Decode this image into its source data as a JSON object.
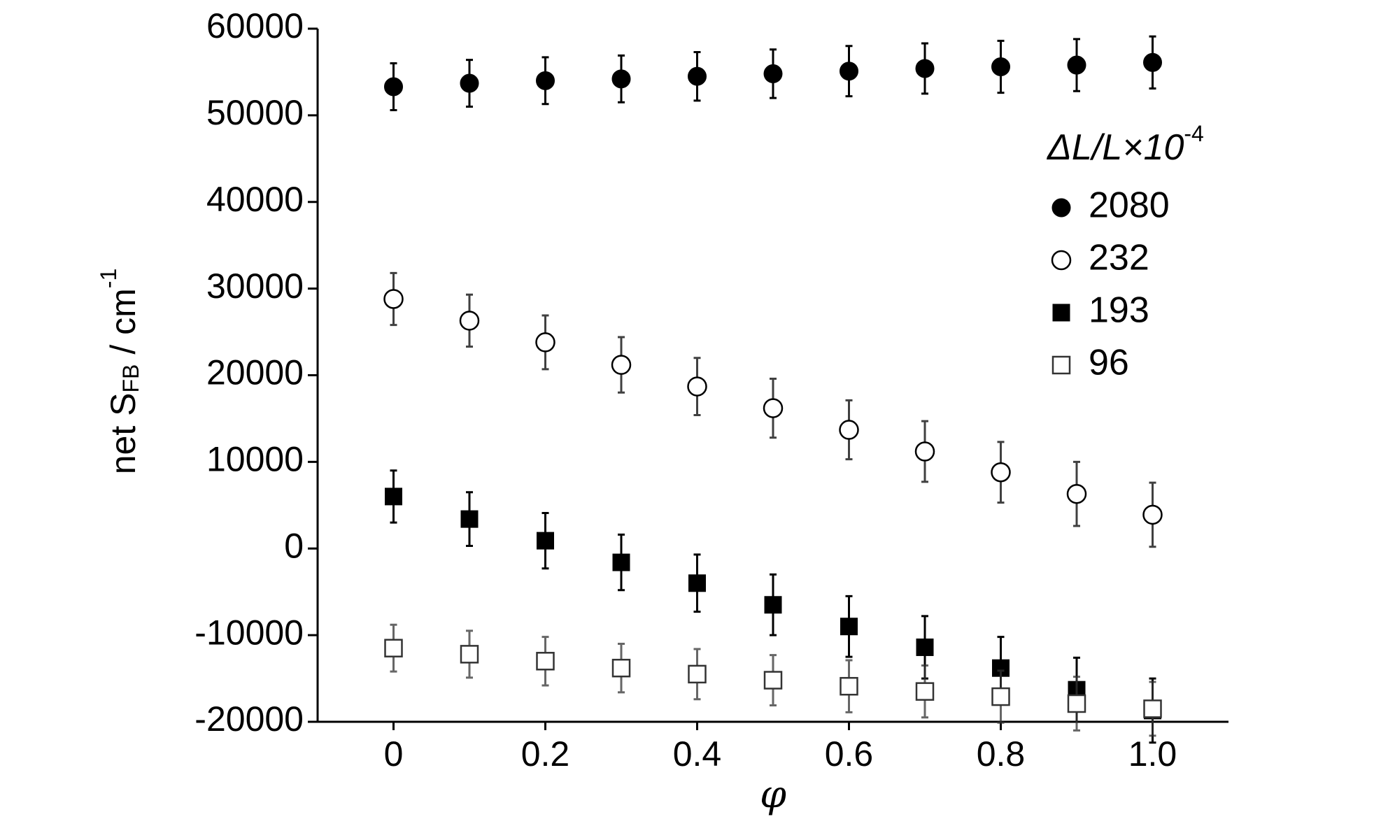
{
  "chart_data": {
    "type": "scatter",
    "x_label": "φ",
    "y_label": {
      "text": "net S",
      "subscript": "FB",
      "unit": "/ cm",
      "superscript": "-1"
    },
    "legend_title": {
      "text": "ΔL/L×10",
      "superscript": "-4"
    },
    "legend": "upper right",
    "x": [
      0,
      0.1,
      0.2,
      0.3,
      0.4,
      0.5,
      0.6,
      0.7,
      0.8,
      0.9,
      1.0
    ],
    "xlim": [
      -0.1,
      1.1
    ],
    "xticks": [
      0,
      0.2,
      0.4,
      0.6,
      0.8,
      {
        "value": 1,
        "label": "1.0"
      }
    ],
    "ylim": [
      -20000,
      60000
    ],
    "yticks": [
      -20000,
      -10000,
      0,
      10000,
      20000,
      30000,
      40000,
      50000,
      60000
    ],
    "series": [
      {
        "name": "2080",
        "color": "#000000",
        "marker": "circle",
        "filled": true,
        "values": [
          53300,
          53700,
          54000,
          54200,
          54500,
          54800,
          55100,
          55400,
          55600,
          55800,
          56100
        ],
        "errors": [
          2700,
          2700,
          2700,
          2700,
          2800,
          2800,
          2900,
          2900,
          3000,
          3000,
          3000
        ]
      },
      {
        "name": "232",
        "color": "#000000",
        "marker": "circle",
        "filled": false,
        "values": [
          28800,
          26300,
          23800,
          21200,
          18700,
          16200,
          13700,
          11200,
          8800,
          6300,
          3900
        ],
        "errors": [
          3000,
          3000,
          3100,
          3200,
          3300,
          3400,
          3400,
          3500,
          3500,
          3700,
          3700
        ]
      },
      {
        "name": "193",
        "color": "#000000",
        "marker": "square",
        "filled": true,
        "values": [
          6000,
          3400,
          900,
          -1600,
          -4000,
          -6500,
          -9000,
          -11400,
          -13800,
          -16300,
          -18700
        ],
        "errors": [
          3000,
          3100,
          3200,
          3200,
          3300,
          3500,
          3500,
          3600,
          3600,
          3700,
          3700
        ]
      },
      {
        "name": "96",
        "color": "#333333",
        "marker": "square",
        "filled": false,
        "values": [
          -11500,
          -12200,
          -13000,
          -13800,
          -14500,
          -15200,
          -15900,
          -16500,
          -17100,
          -17900,
          -18500
        ],
        "errors": [
          2700,
          2700,
          2800,
          2800,
          2900,
          2900,
          3000,
          3000,
          3000,
          3100,
          3100
        ]
      }
    ]
  }
}
